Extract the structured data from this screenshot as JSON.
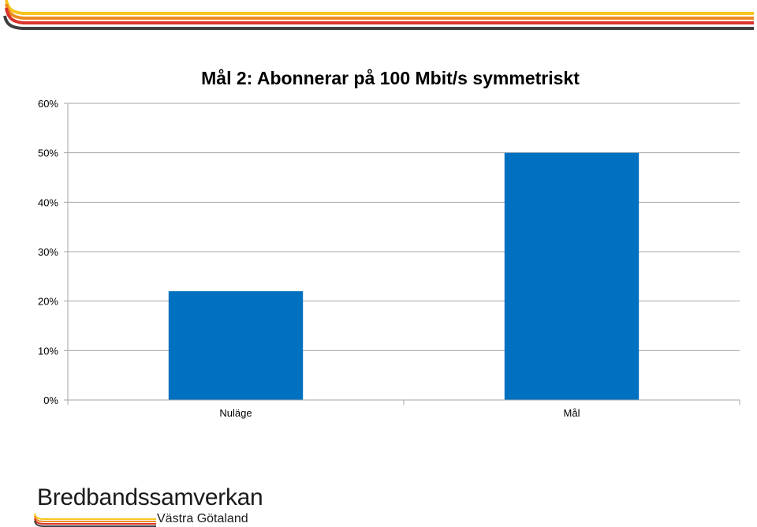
{
  "brand": {
    "name": "Bredbandssamverkan",
    "region": "Västra Götaland",
    "stripe_colors": [
      "#f7c51e",
      "#ee8b1f",
      "#d9332a",
      "#3f3f3f"
    ]
  },
  "chart_data": {
    "type": "bar",
    "title": "Mål 2: Abonnerar på 100 Mbit/s symmetriskt",
    "categories": [
      "Nuläge",
      "Mål"
    ],
    "values": [
      22,
      50
    ],
    "ylim": [
      0,
      60
    ],
    "yticks": [
      "0%",
      "10%",
      "20%",
      "30%",
      "40%",
      "50%",
      "60%"
    ],
    "ytick_values": [
      0,
      10,
      20,
      30,
      40,
      50,
      60
    ],
    "grid": true,
    "bar_color": "#0070c0",
    "xlabel": "",
    "ylabel": ""
  }
}
